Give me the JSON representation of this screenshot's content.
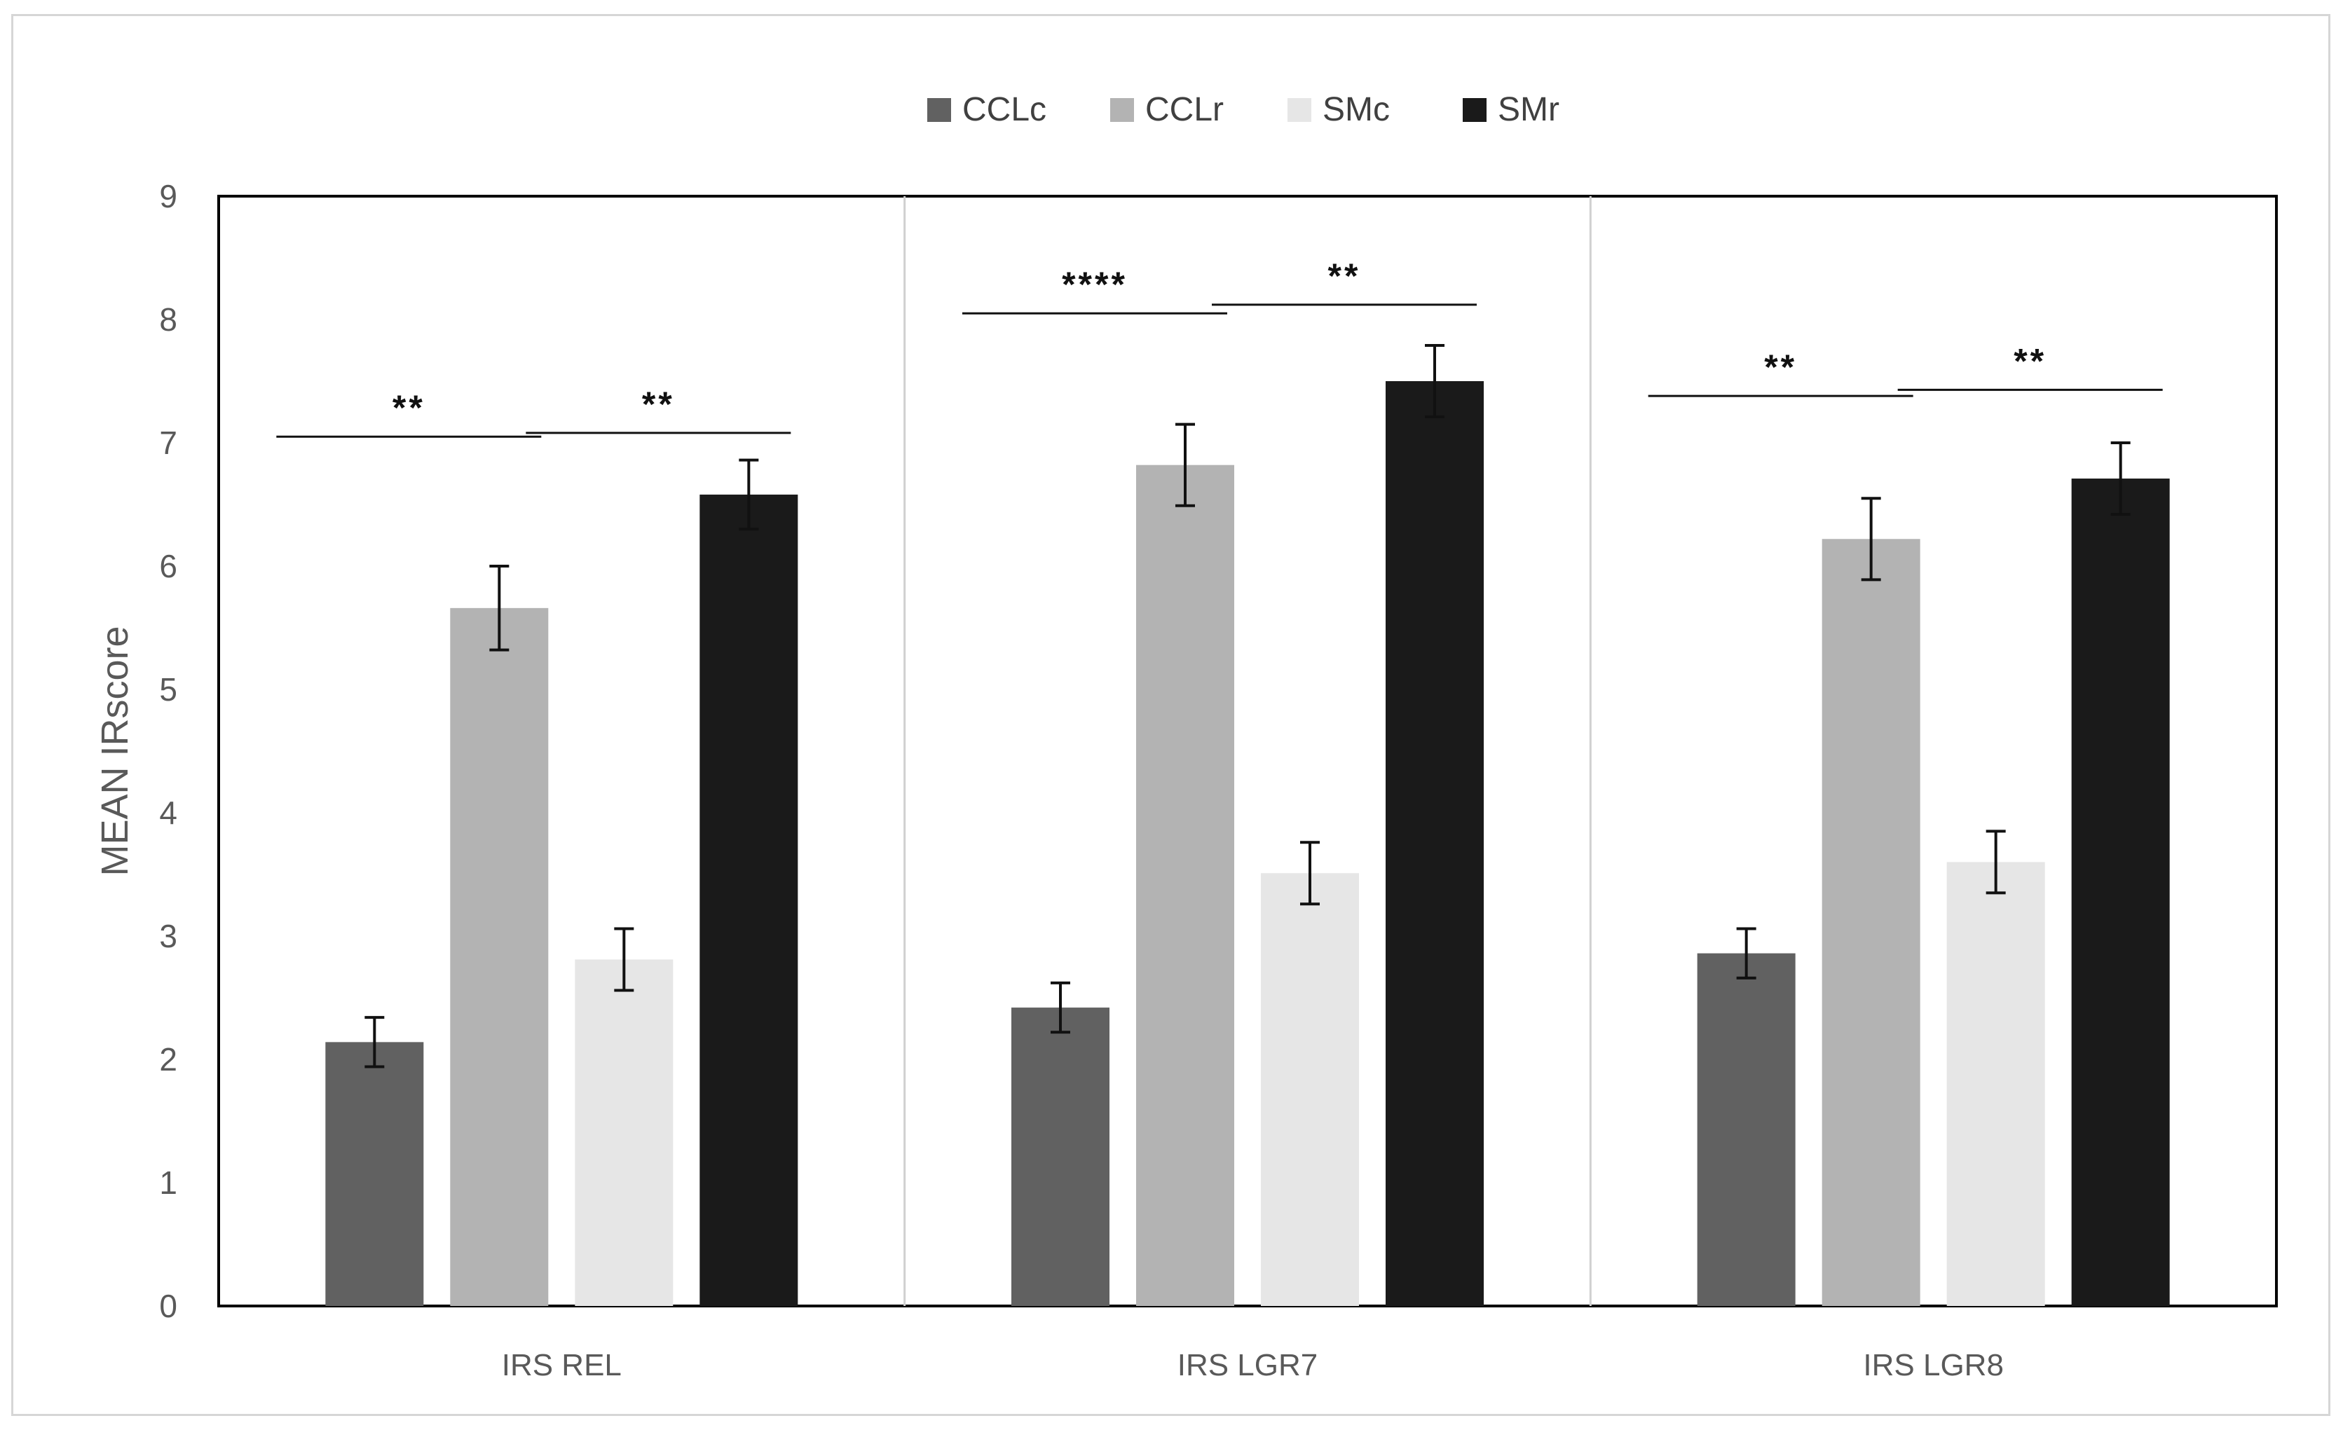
{
  "chart_data": {
    "type": "bar",
    "title": "",
    "xlabel": "",
    "ylabel": "MEAN IRscore",
    "ylim": [
      0,
      9
    ],
    "yticks": [
      "0",
      "1",
      "2",
      "3",
      "4",
      "5",
      "6",
      "7",
      "8",
      "9"
    ],
    "categories": [
      "IRS REL",
      "IRS LGR7",
      "IRS LGR8"
    ],
    "legend_position": "top",
    "series": [
      {
        "name": "CCLc",
        "color": "#616161",
        "values": [
          2.14,
          2.42,
          2.86
        ],
        "errors": [
          0.2,
          0.2,
          0.2
        ]
      },
      {
        "name": "CCLr",
        "color": "#b3b3b3",
        "values": [
          5.66,
          6.82,
          6.22
        ],
        "errors": [
          0.34,
          0.33,
          0.33
        ]
      },
      {
        "name": "SMc",
        "color": "#e6e6e6",
        "values": [
          2.81,
          3.51,
          3.6
        ],
        "errors": [
          0.25,
          0.25,
          0.25
        ]
      },
      {
        "name": "SMr",
        "color": "#1a1a1a",
        "values": [
          6.58,
          7.5,
          6.71
        ],
        "errors": [
          0.28,
          0.29,
          0.29
        ]
      }
    ],
    "annotations": [
      {
        "category": 0,
        "from_series": 0,
        "to_series": 1,
        "level": 7.05,
        "label": "**"
      },
      {
        "category": 0,
        "from_series": 2,
        "to_series": 3,
        "level": 7.08,
        "label": "**"
      },
      {
        "category": 1,
        "from_series": 0,
        "to_series": 1,
        "level": 8.05,
        "label": "****"
      },
      {
        "category": 1,
        "from_series": 2,
        "to_series": 3,
        "level": 8.12,
        "label": "**"
      },
      {
        "category": 2,
        "from_series": 0,
        "to_series": 1,
        "level": 7.38,
        "label": "**"
      },
      {
        "category": 2,
        "from_series": 2,
        "to_series": 3,
        "level": 7.43,
        "label": "**"
      }
    ]
  }
}
